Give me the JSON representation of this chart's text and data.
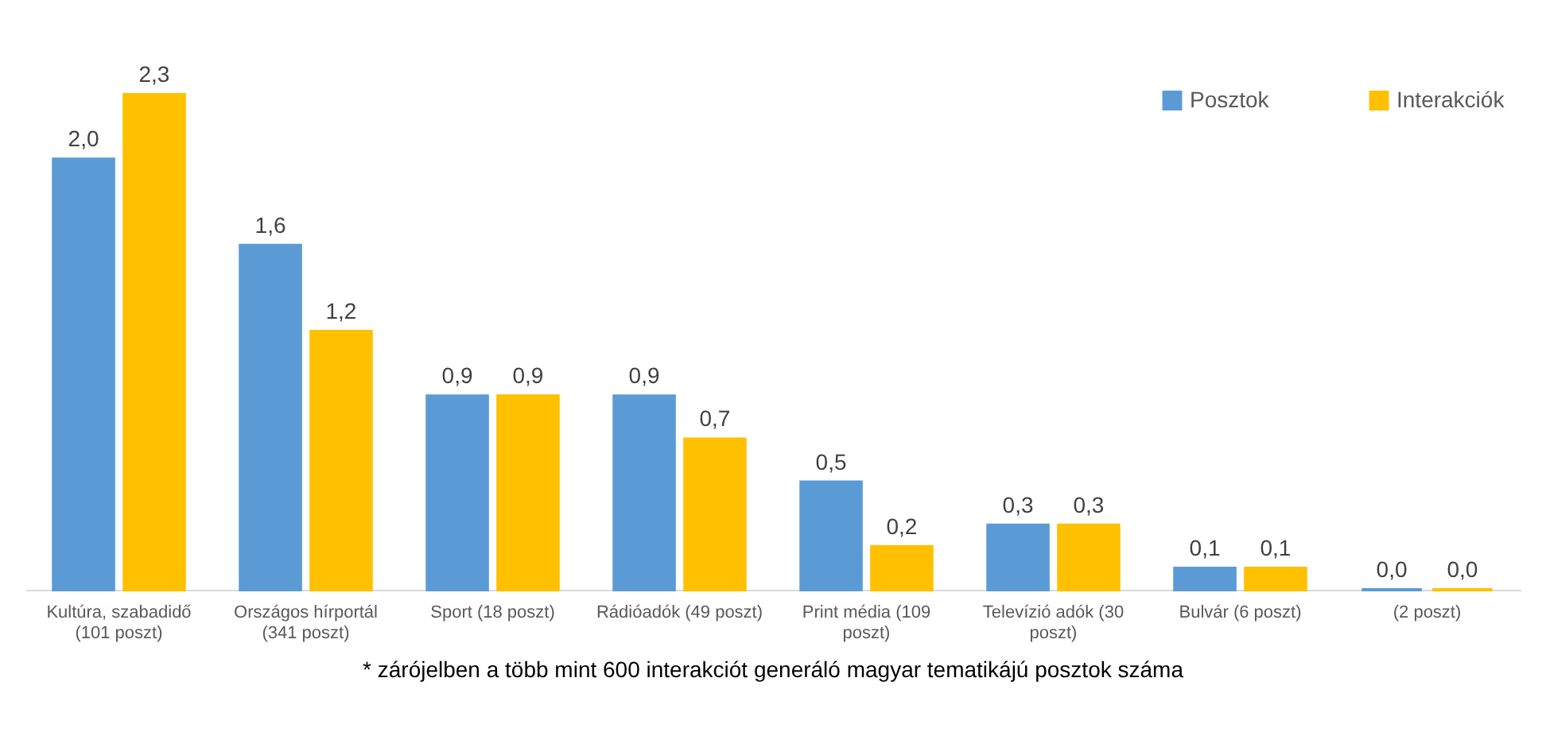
{
  "chart_data": {
    "type": "bar",
    "categories": [
      "Kultúra, szabadidő (101 poszt)",
      "Országos hírportál (341 poszt)",
      "Sport (18 poszt)",
      "Rádióadók (49 poszt)",
      "Print média (109 poszt)",
      "Televízió adók (30 poszt)",
      "Bulvár (6 poszt)",
      "(2 poszt)"
    ],
    "series": [
      {
        "name": "Posztok",
        "color": "#5b9bd5",
        "values": [
          2.0,
          1.6,
          0.9,
          0.9,
          0.5,
          0.3,
          0.1,
          0.0
        ],
        "value_labels": [
          "2,0",
          "1,6",
          "0,9",
          "0,9",
          "0,5",
          "0,3",
          "0,1",
          "0,0"
        ]
      },
      {
        "name": "Interakciók",
        "color": "#ffc000",
        "values": [
          2.3,
          1.2,
          0.9,
          0.7,
          0.2,
          0.3,
          0.1,
          0.0
        ],
        "value_labels": [
          "2,3",
          "1,2",
          "0,9",
          "0,7",
          "0,2",
          "0,3",
          "0,1",
          "0,0"
        ]
      }
    ],
    "legend": "top right",
    "annotations": [
      "* zárójelben a több mint 600 interakciót generáló magyar tematikájú posztok száma"
    ]
  }
}
